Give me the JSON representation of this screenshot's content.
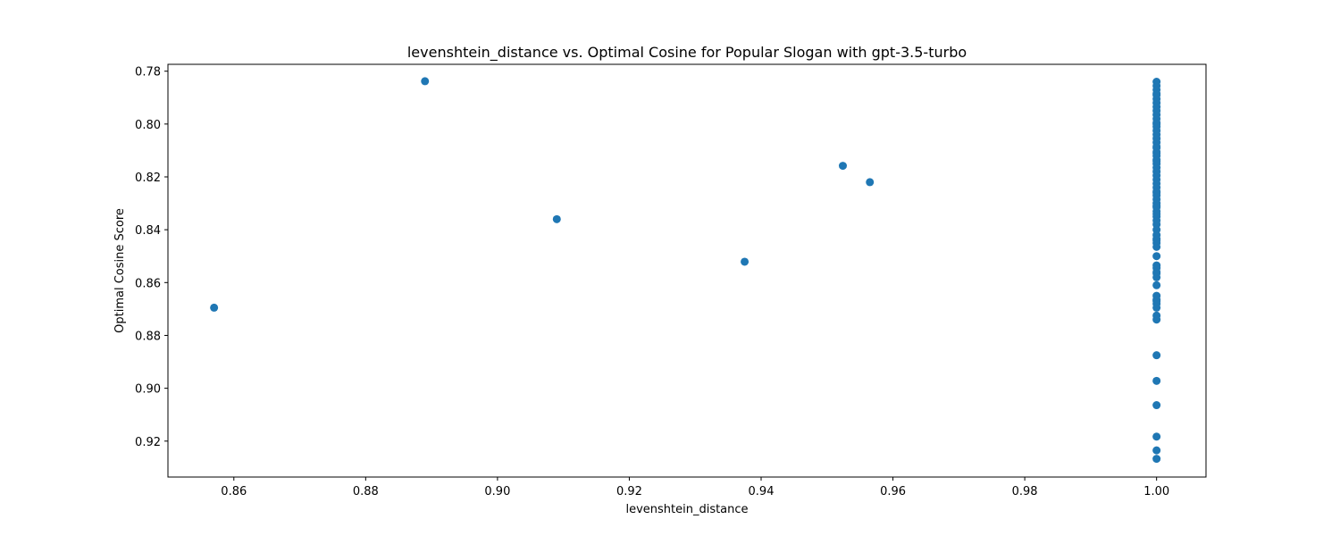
{
  "chart_data": {
    "type": "scatter",
    "title": "levenshtein_distance vs. Optimal Cosine for Popular Slogan with gpt-3.5-turbo",
    "xlabel": "levenshtein_distance",
    "ylabel": "Optimal Cosine Score",
    "xlim": [
      0.85,
      1.0075
    ],
    "ylim": [
      0.7774,
      0.9336
    ],
    "y_inverted": true,
    "grid": false,
    "point_color": "#1f77b4",
    "x_ticks": [
      "0.86",
      "0.88",
      "0.90",
      "0.92",
      "0.94",
      "0.96",
      "0.98",
      "1.00"
    ],
    "y_ticks": [
      "0.78",
      "0.80",
      "0.82",
      "0.84",
      "0.86",
      "0.88",
      "0.90",
      "0.92"
    ],
    "series": [
      {
        "x": [
          0.857,
          0.889,
          0.909,
          0.9375,
          0.9524,
          0.9565,
          1.0,
          1.0,
          1.0,
          1.0,
          1.0,
          1.0,
          1.0,
          1.0,
          1.0,
          1.0,
          1.0,
          1.0,
          1.0,
          1.0,
          1.0,
          1.0,
          1.0,
          1.0,
          1.0,
          1.0,
          1.0,
          1.0,
          1.0,
          1.0,
          1.0,
          1.0,
          1.0,
          1.0,
          1.0,
          1.0,
          1.0,
          1.0,
          1.0,
          1.0,
          1.0,
          1.0,
          1.0,
          1.0,
          1.0,
          1.0,
          1.0,
          1.0,
          1.0,
          1.0,
          1.0,
          1.0,
          1.0,
          1.0,
          1.0,
          1.0,
          1.0,
          1.0,
          1.0,
          1.0,
          1.0,
          1.0,
          1.0,
          1.0,
          1.0,
          1.0,
          1.0,
          1.0,
          1.0,
          1.0,
          1.0,
          1.0,
          1.0,
          1.0,
          1.0,
          1.0
        ],
        "y": [
          0.8695,
          0.7838,
          0.836,
          0.8521,
          0.8158,
          0.822,
          0.784,
          0.7855,
          0.787,
          0.7885,
          0.7905,
          0.792,
          0.7935,
          0.795,
          0.7965,
          0.798,
          0.7995,
          0.801,
          0.8025,
          0.804,
          0.8055,
          0.807,
          0.8085,
          0.8105,
          0.812,
          0.8135,
          0.815,
          0.8165,
          0.818,
          0.8195,
          0.821,
          0.8225,
          0.824,
          0.8255,
          0.827,
          0.8285,
          0.83,
          0.8315,
          0.833,
          0.835,
          0.8365,
          0.838,
          0.84,
          0.842,
          0.8435,
          0.845,
          0.8465,
          0.85,
          0.8535,
          0.8545,
          0.8565,
          0.858,
          0.861,
          0.865,
          0.8665,
          0.868,
          0.8695,
          0.8725,
          0.874,
          0.8875,
          0.8972,
          0.9064,
          0.9183,
          0.9235,
          0.9267,
          0.8,
          0.809,
          0.814,
          0.826,
          0.834,
          0.844,
          0.856,
          0.867,
          0.789,
          0.811,
          0.831
        ]
      }
    ]
  }
}
